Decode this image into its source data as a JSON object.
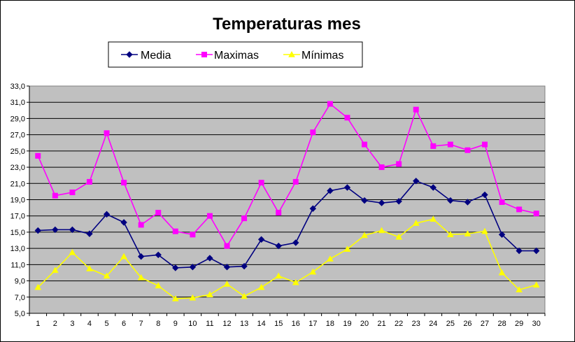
{
  "chart_data": {
    "type": "line",
    "title": "Temperaturas mes",
    "xlabel": "",
    "ylabel": "",
    "categories": [
      "1",
      "2",
      "3",
      "4",
      "5",
      "6",
      "7",
      "8",
      "9",
      "10",
      "11",
      "12",
      "13",
      "14",
      "15",
      "16",
      "17",
      "18",
      "19",
      "20",
      "21",
      "22",
      "23",
      "24",
      "25",
      "26",
      "27",
      "28",
      "29",
      "30"
    ],
    "ylim": [
      5.0,
      33.0
    ],
    "y_ticks": [
      "5,0",
      "7,0",
      "9,0",
      "11,0",
      "13,0",
      "15,0",
      "17,0",
      "19,0",
      "21,0",
      "23,0",
      "25,0",
      "27,0",
      "29,0",
      "31,0",
      "33,0"
    ],
    "grid": true,
    "legend_position": "top",
    "plot_background": "#c0c0c0",
    "series": [
      {
        "name": "Media",
        "color": "#000080",
        "marker": "diamond",
        "values": [
          15.2,
          15.3,
          15.3,
          14.8,
          17.2,
          16.2,
          12.0,
          12.2,
          10.6,
          10.7,
          11.8,
          10.7,
          10.8,
          14.1,
          13.3,
          13.7,
          17.9,
          20.1,
          20.5,
          18.9,
          18.6,
          18.8,
          21.3,
          20.5,
          18.9,
          18.7,
          19.6,
          14.7,
          12.7,
          12.7
        ]
      },
      {
        "name": "Maximas",
        "color": "#ff00ff",
        "marker": "square",
        "values": [
          24.4,
          19.5,
          19.9,
          21.2,
          27.2,
          21.1,
          15.9,
          17.4,
          15.1,
          14.7,
          17.0,
          13.3,
          16.7,
          21.1,
          17.4,
          21.2,
          27.3,
          30.8,
          29.1,
          25.8,
          23.0,
          23.4,
          30.1,
          25.6,
          25.8,
          25.1,
          25.8,
          18.7,
          17.8,
          17.3
        ]
      },
      {
        "name": "Mínimas",
        "color": "#ffff00",
        "marker": "triangle",
        "values": [
          8.2,
          10.3,
          12.5,
          10.5,
          9.6,
          12.0,
          9.4,
          8.4,
          6.8,
          6.9,
          7.3,
          8.6,
          7.1,
          8.2,
          9.6,
          8.8,
          10.1,
          11.7,
          12.9,
          14.6,
          15.2,
          14.4,
          16.1,
          16.6,
          14.7,
          14.8,
          15.1,
          10.0,
          7.9,
          8.5
        ]
      }
    ]
  }
}
